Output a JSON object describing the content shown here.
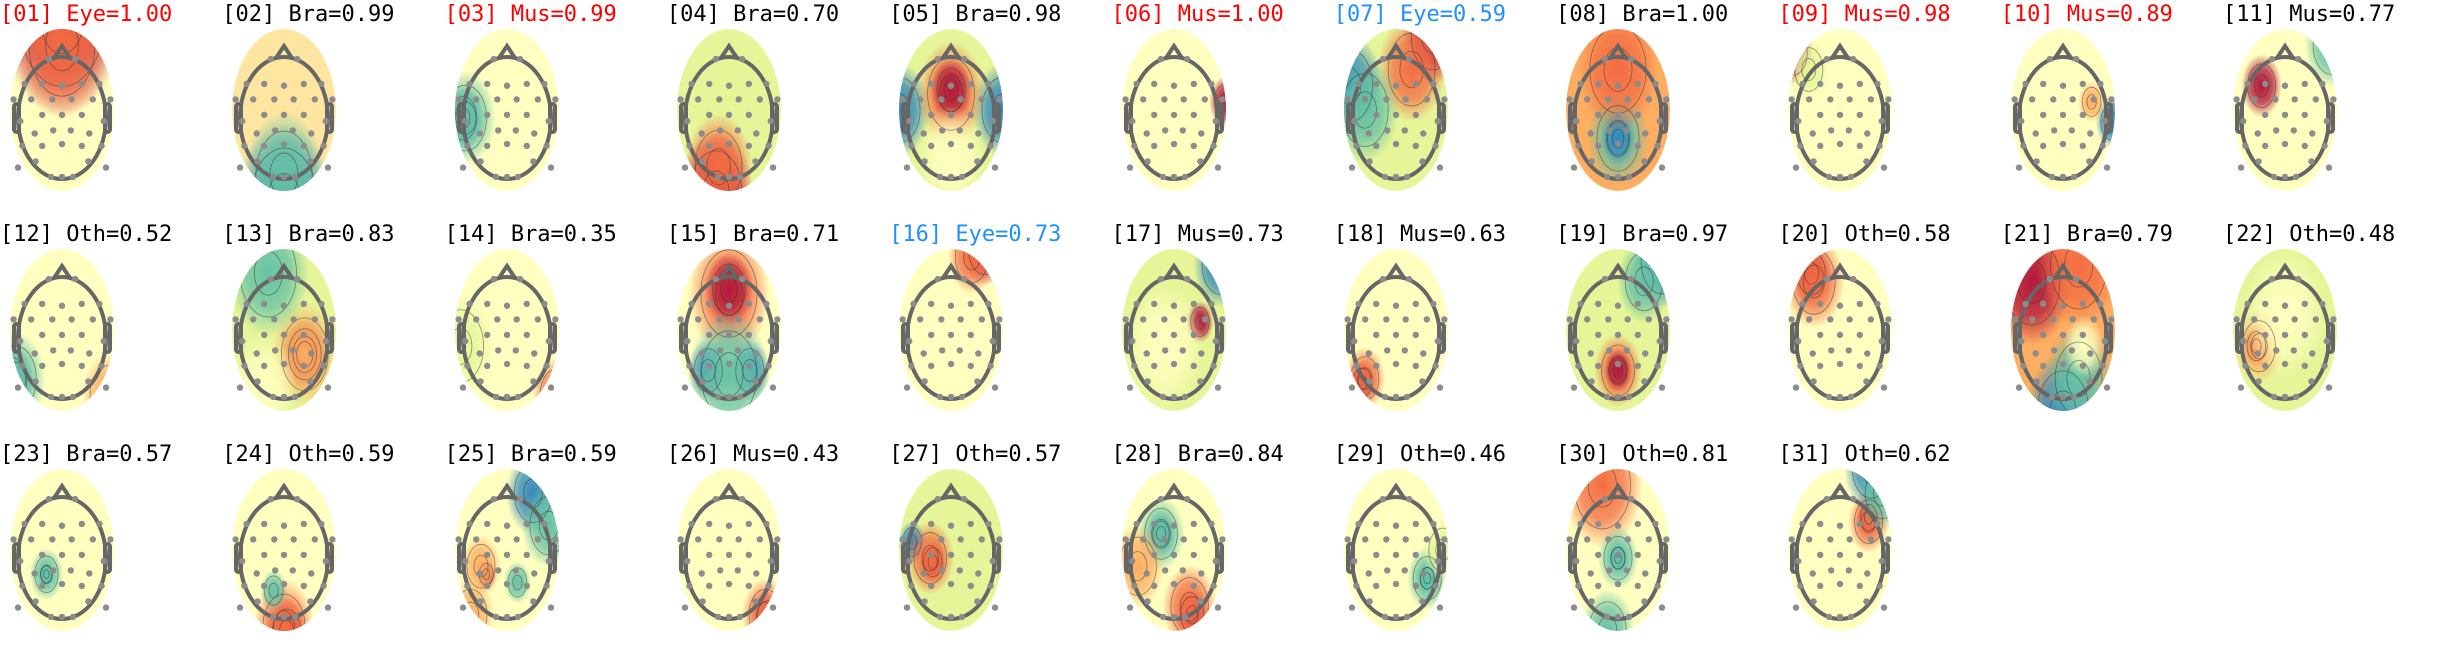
{
  "figure": {
    "colors": {
      "default": "#000000",
      "flag_red": "#ff0000",
      "flag_blue": "#1e90ff"
    },
    "colormap": [
      "#3288bd",
      "#66c2a5",
      "#e6f598",
      "#ffffbf",
      "#fdae61",
      "#f46d43",
      "#b2183b"
    ],
    "components": [
      {
        "label": "[01] Eye=1.00",
        "flag": "flag_red"
      },
      {
        "label": "[02] Bra=0.99",
        "flag": "default"
      },
      {
        "label": "[03] Mus=0.99",
        "flag": "flag_red"
      },
      {
        "label": "[04] Bra=0.70",
        "flag": "default"
      },
      {
        "label": "[05] Bra=0.98",
        "flag": "default"
      },
      {
        "label": "[06] Mus=1.00",
        "flag": "flag_red"
      },
      {
        "label": "[07] Eye=0.59",
        "flag": "flag_blue"
      },
      {
        "label": "[08] Bra=1.00",
        "flag": "default"
      },
      {
        "label": "[09] Mus=0.98",
        "flag": "flag_red"
      },
      {
        "label": "[10] Mus=0.89",
        "flag": "flag_red"
      },
      {
        "label": "[11] Mus=0.77",
        "flag": "default"
      },
      {
        "label": "[12] Oth=0.52",
        "flag": "default"
      },
      {
        "label": "[13] Bra=0.83",
        "flag": "default"
      },
      {
        "label": "[14] Bra=0.35",
        "flag": "default"
      },
      {
        "label": "[15] Bra=0.71",
        "flag": "default"
      },
      {
        "label": "[16] Eye=0.73",
        "flag": "flag_blue"
      },
      {
        "label": "[17] Mus=0.73",
        "flag": "default"
      },
      {
        "label": "[18] Mus=0.63",
        "flag": "default"
      },
      {
        "label": "[19] Bra=0.97",
        "flag": "default"
      },
      {
        "label": "[20] Oth=0.58",
        "flag": "default"
      },
      {
        "label": "[21] Bra=0.79",
        "flag": "default"
      },
      {
        "label": "[22] Oth=0.48",
        "flag": "default"
      },
      {
        "label": "[23] Bra=0.57",
        "flag": "default"
      },
      {
        "label": "[24] Oth=0.59",
        "flag": "default"
      },
      {
        "label": "[25] Bra=0.59",
        "flag": "default"
      },
      {
        "label": "[26] Mus=0.43",
        "flag": "default"
      },
      {
        "label": "[27] Oth=0.57",
        "flag": "default"
      },
      {
        "label": "[28] Bra=0.84",
        "flag": "default"
      },
      {
        "label": "[29] Oth=0.46",
        "flag": "default"
      },
      {
        "label": "[30] Oth=0.81",
        "flag": "default"
      },
      {
        "label": "[31] Oth=0.62",
        "flag": "default"
      }
    ]
  }
}
